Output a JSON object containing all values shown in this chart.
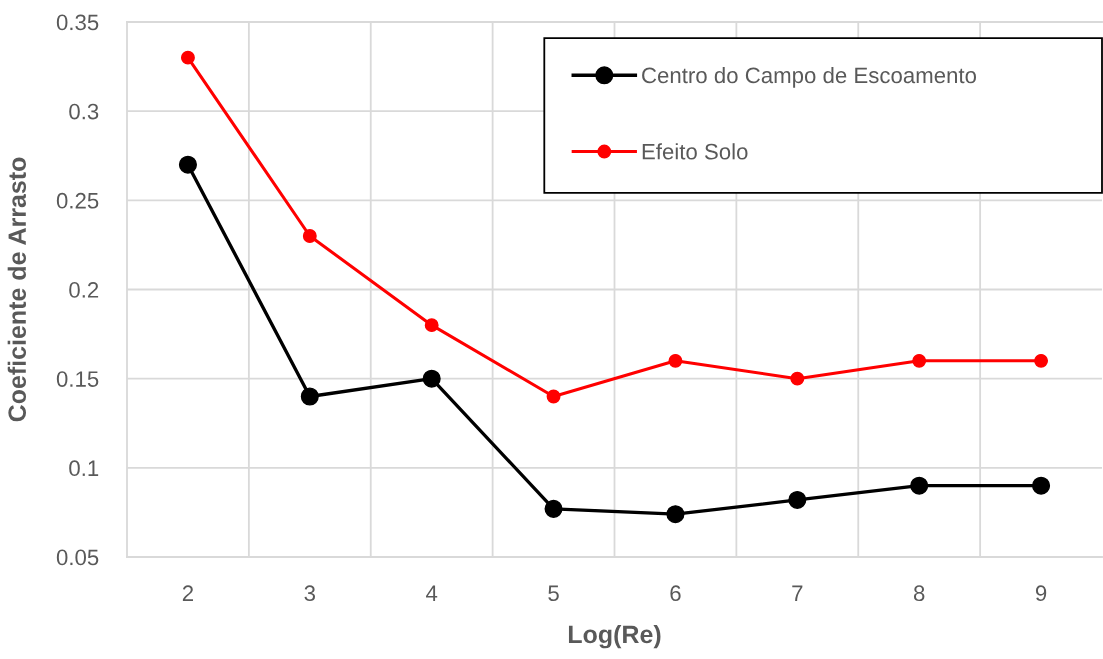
{
  "chart_data": {
    "type": "line",
    "xlabel": "Log(Re)",
    "ylabel": "Coeficiente de Arrasto",
    "categories": [
      "2",
      "3",
      "4",
      "5",
      "6",
      "7",
      "8",
      "9"
    ],
    "series": [
      {
        "name": "Centro do Campo de Escoamento",
        "color": "#000000",
        "values": [
          0.27,
          0.14,
          0.15,
          0.077,
          0.074,
          0.082,
          0.09,
          0.09
        ]
      },
      {
        "name": "Efeito Solo",
        "color": "#ff0000",
        "values": [
          0.33,
          0.23,
          0.18,
          0.14,
          0.16,
          0.15,
          0.16,
          0.16
        ]
      }
    ],
    "ylim": [
      0.05,
      0.35
    ],
    "yticks": [
      0.05,
      0.1,
      0.15,
      0.2,
      0.25,
      0.3,
      0.35
    ],
    "grid": true,
    "legend": "top right",
    "marker": "circle",
    "line_style": "solid"
  }
}
